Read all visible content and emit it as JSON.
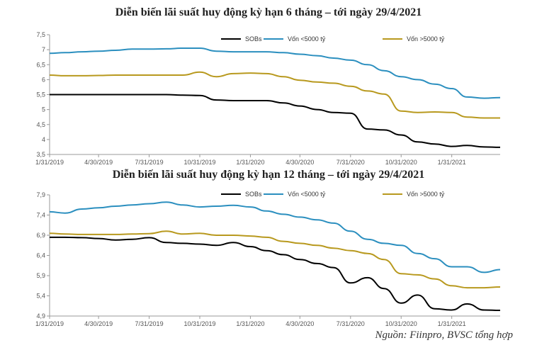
{
  "colors": {
    "sobs": "#000000",
    "under5000": "#2b8fbf",
    "over5000": "#b8991e",
    "axis": "#9a9a9a"
  },
  "source": "Nguồn: Fiinpro, BVSC tổng hợp",
  "chart_data": [
    {
      "type": "line",
      "title": "Diễn biến lãi suất huy động kỳ hạn 6 tháng – tới ngày 29/4/2021",
      "xlabel": "",
      "ylabel": "",
      "ylim": [
        3.5,
        7.5
      ],
      "yticks": [
        "7,5",
        "7",
        "6,5",
        "6",
        "5,5",
        "5",
        "4,5",
        "4",
        "3,5"
      ],
      "x_tick_labels": [
        "1/31/2019",
        "4/30/2019",
        "7/31/2019",
        "10/31/2019",
        "1/31/2020",
        "4/30/2020",
        "7/31/2020",
        "10/31/2020",
        "1/31/2021"
      ],
      "legend_position": "top-right",
      "x": [
        "1/31/2019",
        "2/28/2019",
        "3/31/2019",
        "4/30/2019",
        "5/31/2019",
        "6/30/2019",
        "7/31/2019",
        "8/31/2019",
        "9/30/2019",
        "10/31/2019",
        "11/30/2019",
        "12/31/2019",
        "1/31/2020",
        "2/29/2020",
        "3/31/2020",
        "4/30/2020",
        "5/31/2020",
        "6/30/2020",
        "7/31/2020",
        "8/31/2020",
        "9/30/2020",
        "10/31/2020",
        "11/30/2020",
        "12/31/2020",
        "1/31/2021",
        "2/28/2021",
        "3/31/2021",
        "4/29/2021"
      ],
      "series": [
        {
          "name": "SOBs",
          "color": "#000000",
          "values": [
            5.5,
            5.5,
            5.5,
            5.5,
            5.5,
            5.5,
            5.5,
            5.5,
            5.48,
            5.47,
            5.32,
            5.3,
            5.3,
            5.3,
            5.22,
            5.12,
            5.0,
            4.9,
            4.88,
            4.35,
            4.32,
            4.15,
            3.92,
            3.85,
            3.77,
            3.8,
            3.75,
            3.74
          ]
        },
        {
          "name": "Vốn <5000 tỷ",
          "color": "#2b8fbf",
          "values": [
            6.88,
            6.9,
            6.93,
            6.95,
            6.98,
            7.02,
            7.02,
            7.03,
            7.05,
            7.05,
            6.95,
            6.93,
            6.93,
            6.93,
            6.9,
            6.85,
            6.8,
            6.72,
            6.65,
            6.5,
            6.3,
            6.1,
            6.0,
            5.85,
            5.7,
            5.42,
            5.38,
            5.4
          ]
        },
        {
          "name": "Vốn >5000 tỷ",
          "color": "#b8991e",
          "values": [
            6.15,
            6.13,
            6.13,
            6.14,
            6.15,
            6.15,
            6.15,
            6.15,
            6.15,
            6.25,
            6.1,
            6.2,
            6.22,
            6.2,
            6.1,
            5.98,
            5.92,
            5.88,
            5.78,
            5.62,
            5.52,
            4.95,
            4.9,
            4.92,
            4.9,
            4.75,
            4.72,
            4.72
          ]
        }
      ]
    },
    {
      "type": "line",
      "title": "Diễn biến lãi suất huy động kỳ hạn 12 tháng – tới ngày 29/4/2021",
      "xlabel": "",
      "ylabel": "",
      "ylim": [
        4.9,
        7.9
      ],
      "yticks": [
        "7,9",
        "7,4",
        "6,9",
        "6,4",
        "5,9",
        "5,4",
        "4,9"
      ],
      "x_tick_labels": [
        "1/31/2019",
        "4/30/2019",
        "7/31/2019",
        "10/31/2019",
        "1/31/2020",
        "4/30/2020",
        "7/31/2020",
        "10/31/2020",
        "1/31/2021"
      ],
      "legend_position": "top-right",
      "x": [
        "1/31/2019",
        "2/28/2019",
        "3/31/2019",
        "4/30/2019",
        "5/31/2019",
        "6/30/2019",
        "7/31/2019",
        "8/31/2019",
        "9/30/2019",
        "10/31/2019",
        "11/30/2019",
        "12/31/2019",
        "1/31/2020",
        "2/29/2020",
        "3/31/2020",
        "4/30/2020",
        "5/31/2020",
        "6/30/2020",
        "7/31/2020",
        "8/31/2020",
        "9/30/2020",
        "10/31/2020",
        "11/30/2020",
        "12/31/2020",
        "1/31/2021",
        "2/28/2021",
        "3/31/2021",
        "4/29/2021"
      ],
      "series": [
        {
          "name": "SOBs",
          "color": "#000000",
          "values": [
            6.85,
            6.85,
            6.84,
            6.82,
            6.78,
            6.8,
            6.84,
            6.72,
            6.7,
            6.68,
            6.65,
            6.72,
            6.62,
            6.52,
            6.42,
            6.3,
            6.2,
            6.1,
            5.72,
            5.85,
            5.58,
            5.22,
            5.42,
            5.08,
            5.05,
            5.2,
            5.05,
            5.04
          ]
        },
        {
          "name": "Vốn <5000 tỷ",
          "color": "#2b8fbf",
          "values": [
            7.48,
            7.45,
            7.55,
            7.58,
            7.62,
            7.65,
            7.68,
            7.72,
            7.65,
            7.6,
            7.62,
            7.64,
            7.6,
            7.5,
            7.42,
            7.35,
            7.28,
            7.2,
            7.0,
            6.8,
            6.7,
            6.65,
            6.45,
            6.32,
            6.12,
            6.12,
            5.98,
            6.05
          ]
        },
        {
          "name": "Vốn >5000 tỷ",
          "color": "#b8991e",
          "values": [
            6.95,
            6.93,
            6.92,
            6.92,
            6.92,
            6.93,
            6.94,
            7.0,
            6.93,
            6.95,
            6.9,
            6.9,
            6.88,
            6.85,
            6.75,
            6.7,
            6.65,
            6.58,
            6.52,
            6.45,
            6.3,
            5.95,
            5.92,
            5.82,
            5.65,
            5.6,
            5.6,
            5.62
          ]
        }
      ]
    }
  ]
}
